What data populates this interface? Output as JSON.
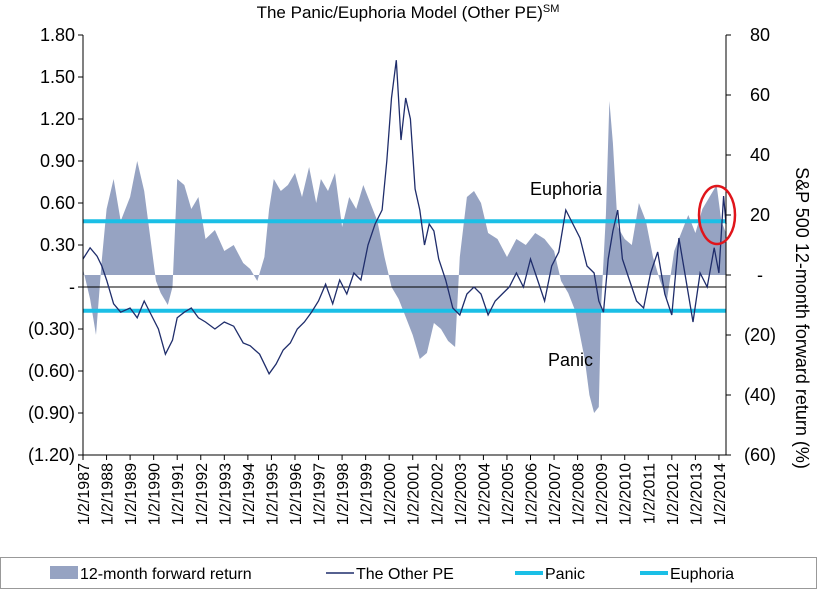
{
  "chart_data": {
    "type": "area",
    "title": "The Panic/Euphoria Model (Other PE)",
    "title_superscript": "SM",
    "xlabel": "",
    "ylabel_left": "",
    "ylabel_right": "S&P 500 12-month forward return (%)",
    "x_start_year": 1987,
    "x_end_year": 2014.3,
    "xticks": [
      "1/2/1987",
      "1/2/1988",
      "1/2/1989",
      "1/2/1990",
      "1/2/1991",
      "1/2/1992",
      "1/2/1993",
      "1/2/1994",
      "1/2/1995",
      "1/2/1996",
      "1/2/1997",
      "1/2/1998",
      "1/2/1999",
      "1/2/2000",
      "1/2/2001",
      "1/2/2002",
      "1/2/2003",
      "1/2/2004",
      "1/2/2005",
      "1/2/2006",
      "1/2/2007",
      "1/2/2008",
      "1/2/2009",
      "1/2/2010",
      "1/2/2011",
      "1/2/2012",
      "1/2/2013",
      "1/2/2014"
    ],
    "ylim_left": [
      -1.2,
      1.8
    ],
    "yticks_left": [
      1.8,
      1.5,
      1.2,
      0.9,
      0.6,
      0.3,
      0,
      -0.3,
      -0.6,
      -0.9,
      -1.2
    ],
    "yticks_left_labels": [
      "1.80",
      "1.50",
      "1.20",
      "0.90",
      "0.60",
      "0.30",
      "-",
      "(0.30)",
      "(0.60)",
      "(0.90)",
      "(1.20)"
    ],
    "ylim_right": [
      -60,
      80
    ],
    "yticks_right": [
      80,
      60,
      40,
      20,
      0,
      -20,
      -40,
      -60
    ],
    "yticks_right_labels": [
      "80",
      "60",
      "40",
      "20",
      "-",
      "(20)",
      "(40)",
      "(60)"
    ],
    "series": [
      {
        "name": "12-month forward return",
        "axis": "right",
        "kind": "area",
        "color": "#96a3c2",
        "x": [
          1987.0,
          1987.3,
          1987.55,
          1987.8,
          1988.0,
          1988.3,
          1988.6,
          1989.0,
          1989.3,
          1989.6,
          1989.8,
          1990.1,
          1990.3,
          1990.6,
          1990.8,
          1991.0,
          1991.3,
          1991.6,
          1991.9,
          1992.2,
          1992.6,
          1993.0,
          1993.4,
          1993.8,
          1994.1,
          1994.4,
          1994.7,
          1994.9,
          1995.1,
          1995.4,
          1995.7,
          1996.0,
          1996.3,
          1996.6,
          1996.9,
          1997.1,
          1997.4,
          1997.7,
          1998.0,
          1998.3,
          1998.6,
          1998.9,
          1999.2,
          1999.5,
          1999.8,
          2000.1,
          2000.4,
          2000.7,
          2001.0,
          2001.3,
          2001.6,
          2001.9,
          2002.2,
          2002.5,
          2002.8,
          2003.0,
          2003.3,
          2003.6,
          2003.9,
          2004.2,
          2004.6,
          2005.0,
          2005.4,
          2005.8,
          2006.2,
          2006.6,
          2007.0,
          2007.3,
          2007.6,
          2007.9,
          2008.1,
          2008.3,
          2008.5,
          2008.7,
          2008.9,
          2009.0,
          2009.2,
          2009.35,
          2009.5,
          2009.7,
          2010.0,
          2010.3,
          2010.6,
          2010.9,
          2011.2,
          2011.5,
          2011.8,
          2012.1,
          2012.4,
          2012.7,
          2013.0,
          2013.3,
          2013.6,
          2013.9,
          2014.1,
          2014.3
        ],
        "y": [
          2,
          -8,
          -20,
          5,
          22,
          32,
          18,
          26,
          38,
          28,
          16,
          -2,
          -6,
          -10,
          -4,
          32,
          30,
          22,
          26,
          12,
          15,
          8,
          10,
          4,
          2,
          -2,
          6,
          22,
          32,
          28,
          30,
          34,
          26,
          36,
          24,
          32,
          28,
          34,
          16,
          26,
          22,
          30,
          24,
          18,
          6,
          -4,
          -8,
          -14,
          -20,
          -28,
          -26,
          -16,
          -18,
          -22,
          -24,
          6,
          26,
          28,
          24,
          14,
          12,
          6,
          12,
          10,
          14,
          12,
          8,
          -2,
          -6,
          -12,
          -20,
          -28,
          -40,
          -46,
          -44,
          -10,
          20,
          58,
          44,
          16,
          12,
          10,
          24,
          18,
          6,
          -2,
          -8,
          8,
          14,
          20,
          14,
          22,
          26,
          30,
          18,
          14
        ]
      },
      {
        "name": "The Other PE",
        "axis": "left",
        "kind": "line",
        "color": "#1f2d6b",
        "x": [
          1987.0,
          1987.3,
          1987.6,
          1987.8,
          1988.0,
          1988.3,
          1988.6,
          1989.0,
          1989.3,
          1989.6,
          1989.9,
          1990.2,
          1990.5,
          1990.8,
          1991.0,
          1991.3,
          1991.6,
          1991.9,
          1992.2,
          1992.6,
          1993.0,
          1993.4,
          1993.8,
          1994.1,
          1994.5,
          1994.9,
          1995.2,
          1995.5,
          1995.8,
          1996.1,
          1996.4,
          1996.7,
          1997.0,
          1997.3,
          1997.6,
          1997.9,
          1998.2,
          1998.5,
          1998.8,
          1999.1,
          1999.4,
          1999.7,
          1999.9,
          2000.1,
          2000.3,
          2000.5,
          2000.7,
          2000.9,
          2001.1,
          2001.3,
          2001.5,
          2001.7,
          2001.9,
          2002.1,
          2002.4,
          2002.7,
          2003.0,
          2003.3,
          2003.6,
          2003.9,
          2004.2,
          2004.5,
          2004.8,
          2005.1,
          2005.4,
          2005.7,
          2006.0,
          2006.3,
          2006.6,
          2006.9,
          2007.2,
          2007.5,
          2007.8,
          2008.1,
          2008.4,
          2008.7,
          2008.9,
          2009.1,
          2009.3,
          2009.5,
          2009.7,
          2009.9,
          2010.2,
          2010.5,
          2010.8,
          2011.1,
          2011.4,
          2011.7,
          2012.0,
          2012.3,
          2012.6,
          2012.9,
          2013.2,
          2013.5,
          2013.8,
          2014.0,
          2014.2,
          2014.3
        ],
        "y": [
          0.2,
          0.28,
          0.22,
          0.15,
          0.05,
          -0.12,
          -0.18,
          -0.15,
          -0.22,
          -0.1,
          -0.2,
          -0.3,
          -0.48,
          -0.38,
          -0.22,
          -0.18,
          -0.15,
          -0.22,
          -0.25,
          -0.3,
          -0.25,
          -0.28,
          -0.4,
          -0.42,
          -0.48,
          -0.62,
          -0.55,
          -0.45,
          -0.4,
          -0.3,
          -0.25,
          -0.18,
          -0.1,
          0.02,
          -0.12,
          0.05,
          -0.05,
          0.1,
          0.05,
          0.3,
          0.45,
          0.55,
          0.9,
          1.35,
          1.62,
          1.05,
          1.35,
          1.2,
          0.7,
          0.55,
          0.3,
          0.45,
          0.4,
          0.2,
          0.05,
          -0.15,
          -0.2,
          -0.05,
          0.0,
          -0.05,
          -0.2,
          -0.1,
          -0.05,
          0.0,
          0.1,
          0.0,
          0.2,
          0.05,
          -0.1,
          0.15,
          0.25,
          0.55,
          0.45,
          0.35,
          0.15,
          0.1,
          -0.1,
          -0.18,
          0.2,
          0.4,
          0.55,
          0.2,
          0.05,
          -0.1,
          -0.15,
          0.1,
          0.25,
          -0.05,
          -0.2,
          0.35,
          0.05,
          -0.25,
          0.1,
          0.0,
          0.28,
          0.1,
          0.65,
          0.45
        ]
      },
      {
        "name": "Panic",
        "axis": "left",
        "kind": "hline",
        "color": "#1bbfe6",
        "value": -0.17
      },
      {
        "name": "Euphoria",
        "axis": "left",
        "kind": "hline",
        "color": "#1bbfe6",
        "value": 0.47
      }
    ],
    "annotations": [
      "Euphoria",
      "Panic"
    ],
    "legend_position": "bottom",
    "legend": [
      "12-month forward return",
      "The Other PE",
      "Panic",
      "Euphoria"
    ],
    "highlight_color": "#e0151b",
    "grid": false
  }
}
